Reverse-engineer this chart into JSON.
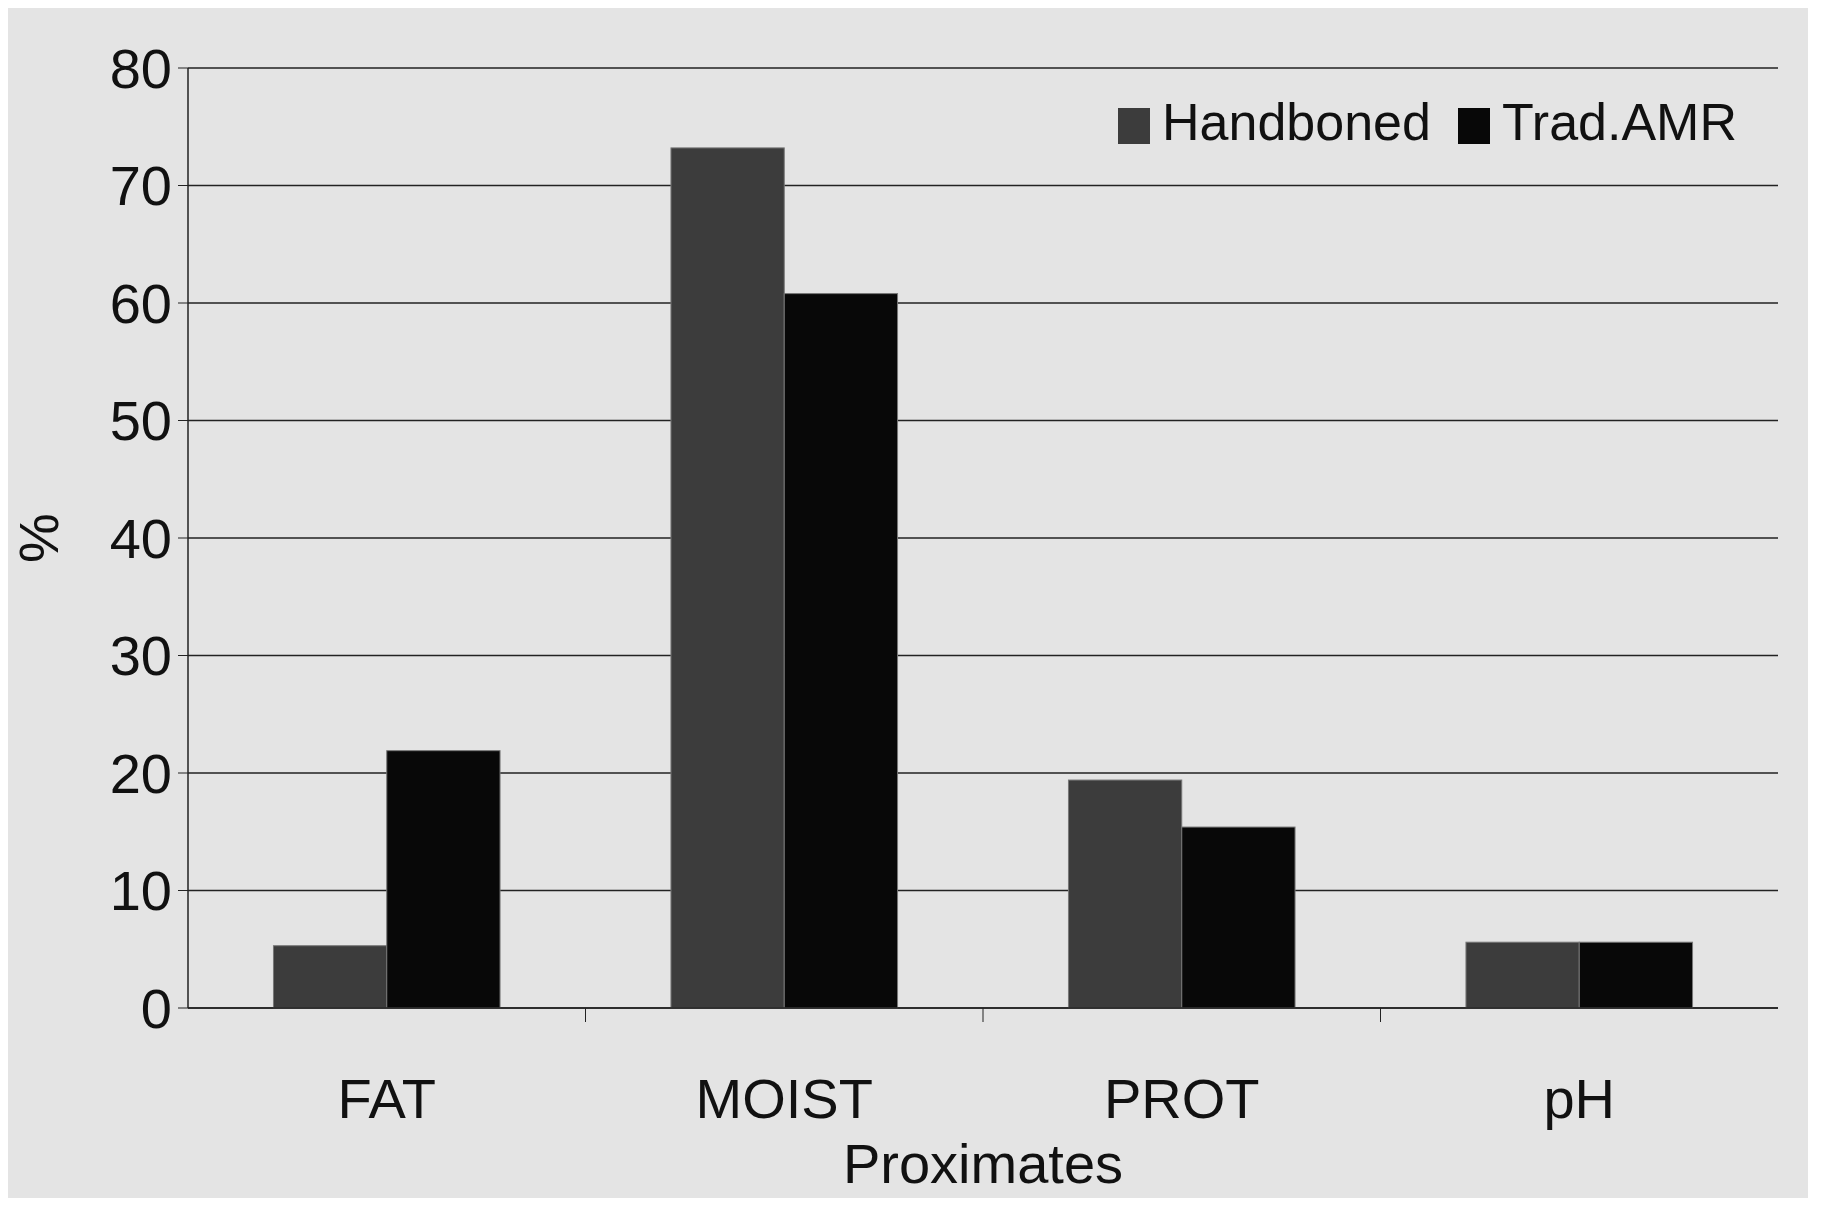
{
  "chart_data": {
    "type": "bar",
    "xlabel": "Proximates",
    "ylabel": "%",
    "categories": [
      "FAT",
      "MOIST",
      "PROT",
      "pH"
    ],
    "series": [
      {
        "name": "Handboned",
        "color": "#3c3c3c",
        "values": [
          5.3,
          73.2,
          19.4,
          5.6
        ]
      },
      {
        "name": "Trad.AMR",
        "color": "#080808",
        "values": [
          21.9,
          60.8,
          15.4,
          5.6
        ]
      }
    ],
    "ylim": [
      0,
      80
    ],
    "yticks": [
      0,
      10,
      20,
      30,
      40,
      50,
      60,
      70,
      80
    ],
    "grid": "y",
    "legend": "top right"
  }
}
